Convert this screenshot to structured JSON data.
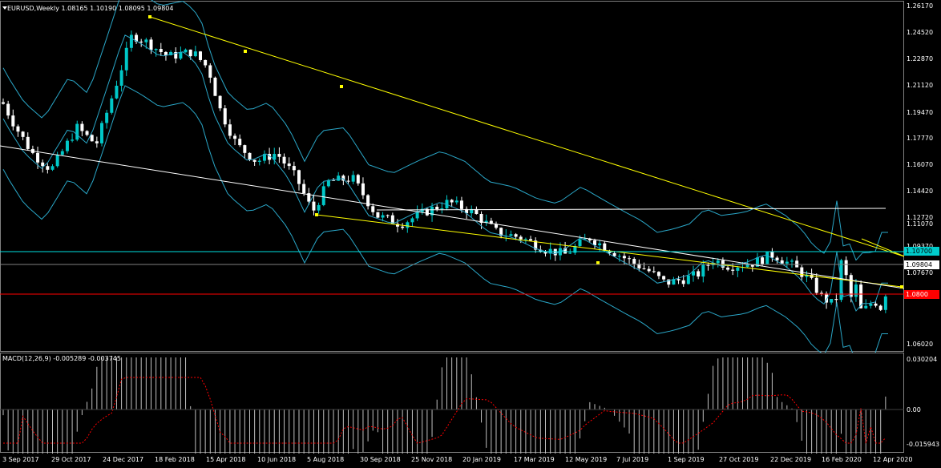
{
  "header": {
    "title": "EURUSD,Weekly  1.08165 1.10190 1.08095 1.09804",
    "macd_title": "MACD(12,26,9) -0.005289 -0.003745"
  },
  "price_axis": [
    "1.26170",
    "1.24520",
    "1.22870",
    "1.21120",
    "1.19470",
    "1.17770",
    "1.16070",
    "1.14420",
    "1.12720",
    "1.11070",
    "1.09370",
    "1.07670",
    "1.06020"
  ],
  "price_tags": {
    "blue_line": "1.10700",
    "current": "1.09804",
    "red_line": "1.0800"
  },
  "macd_axis": [
    "0.030204",
    "0.00",
    "-0.015943"
  ],
  "time_axis": [
    "3 Sep 2017",
    "29 Oct 2017",
    "24 Dec 2017",
    "18 Feb 2018",
    "15 Apr 2018",
    "10 Jun 2018",
    "5 Aug 2018",
    "30 Sep 2018",
    "25 Nov 2018",
    "20 Jan 2019",
    "17 Mar 2019",
    "12 May 2019",
    "7 Jul 2019",
    "1 Sep 2019",
    "27 Oct 2019",
    "22 Dec 2019",
    "16 Feb 2020",
    "12 Apr 2020"
  ],
  "colors": {
    "background": "#000000",
    "bull_candle": "#00c8c8",
    "bear_candle": "#ffffff",
    "bands": "#2aa7c8",
    "trendline": "#ffff00",
    "horizontal_blue": "#00e0e0",
    "horizontal_red": "#ff0000",
    "signal": "#ff0000",
    "histogram": "#c0c0c0"
  }
}
